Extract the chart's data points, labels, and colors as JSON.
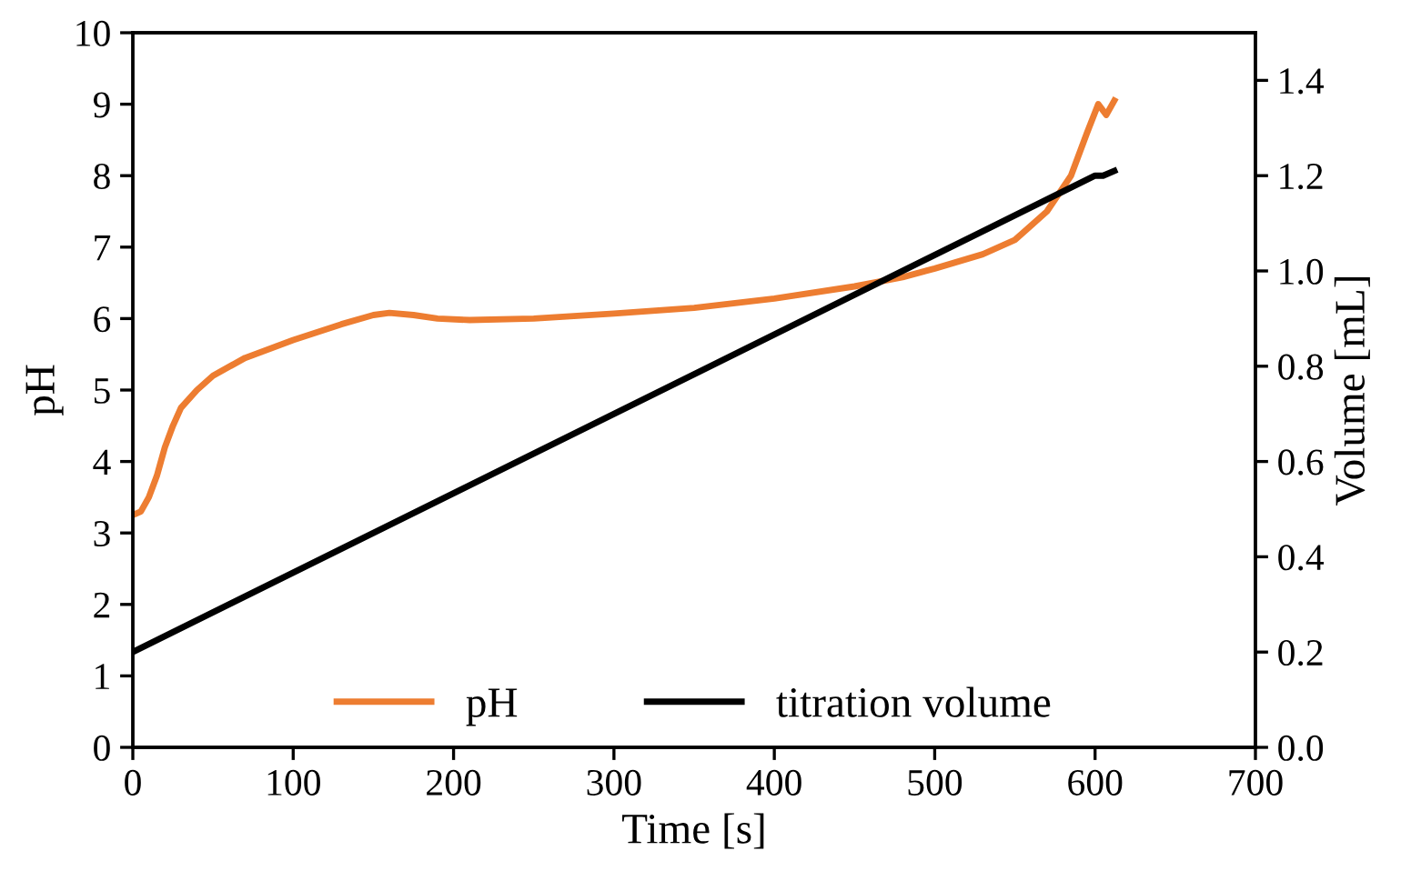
{
  "chart_data": {
    "type": "line",
    "xlabel": "Time [s]",
    "ylabel": "pH",
    "y2label": "Volume [mL]",
    "xlim": [
      0,
      700
    ],
    "xticks": [
      0,
      100,
      200,
      300,
      400,
      500,
      600,
      700
    ],
    "ylim": [
      0,
      10
    ],
    "yticks": [
      0,
      1,
      2,
      3,
      4,
      5,
      6,
      7,
      8,
      9,
      10
    ],
    "y2lim": [
      0,
      1.5
    ],
    "y2ticks": [
      {
        "value": 0,
        "label": "0.0"
      },
      {
        "value": 0.2,
        "label": "0.2"
      },
      {
        "value": 0.4,
        "label": "0.4"
      },
      {
        "value": 0.6,
        "label": "0.6"
      },
      {
        "value": 0.8,
        "label": "0.8"
      },
      {
        "value": 1.0,
        "label": "1.0"
      },
      {
        "value": 1.2,
        "label": "1.2"
      },
      {
        "value": 1.4,
        "label": "1.4"
      }
    ],
    "grid": false,
    "legend": "bottom",
    "marker": "none",
    "line_style": "solid",
    "series": [
      {
        "name": "pH",
        "color": "#ed7d31",
        "x": [
          0,
          5,
          10,
          15,
          20,
          25,
          30,
          40,
          50,
          70,
          100,
          130,
          150,
          160,
          175,
          190,
          210,
          250,
          300,
          350,
          400,
          450,
          480,
          500,
          530,
          550,
          570,
          585,
          595,
          602,
          607,
          612
        ],
        "values": [
          3.25,
          3.3,
          3.5,
          3.8,
          4.2,
          4.5,
          4.75,
          5.0,
          5.2,
          5.45,
          5.7,
          5.92,
          6.05,
          6.08,
          6.05,
          6.0,
          5.98,
          6.0,
          6.07,
          6.15,
          6.28,
          6.45,
          6.58,
          6.7,
          6.9,
          7.1,
          7.5,
          8.0,
          8.6,
          9.0,
          8.85,
          9.05
        ]
      },
      {
        "name": "titration volume",
        "color": "#000000",
        "axis": "y2",
        "x": [
          0,
          600,
          605,
          612
        ],
        "values": [
          0.2,
          1.2,
          1.2,
          1.21
        ]
      }
    ]
  }
}
